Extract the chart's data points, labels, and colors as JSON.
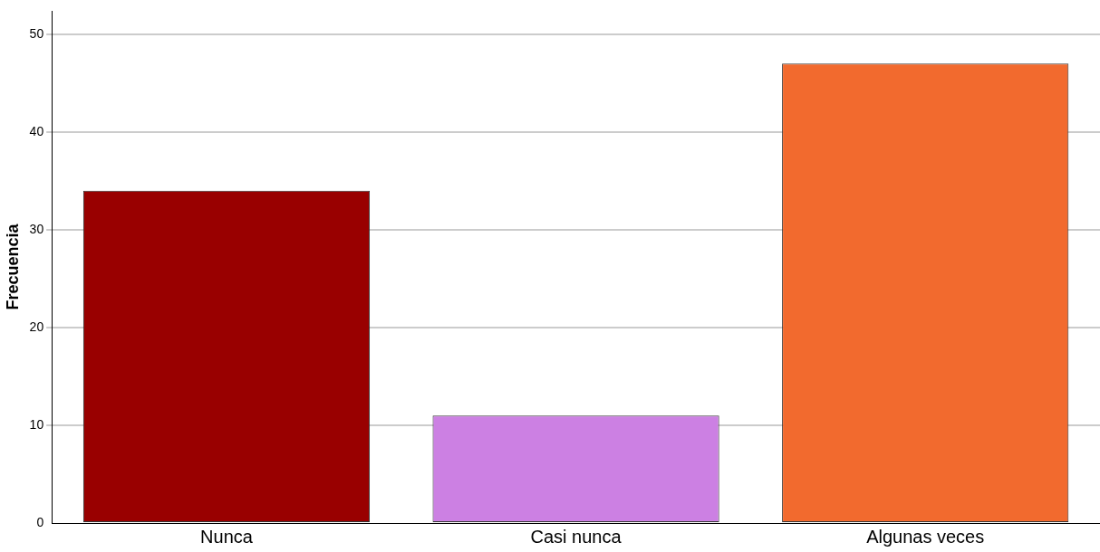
{
  "chart_data": {
    "type": "bar",
    "ylabel": "Frecuencia",
    "categories": [
      "Nunca",
      "Casi nunca",
      "Algunas veces"
    ],
    "values": [
      34,
      11,
      47
    ],
    "colors": [
      "#990000",
      "#cc80e3",
      "#f26a2e"
    ],
    "ylim": [
      0,
      52.4
    ],
    "yticks": [
      0,
      10,
      20,
      30,
      40,
      50
    ],
    "grid": "y",
    "legend": false
  }
}
